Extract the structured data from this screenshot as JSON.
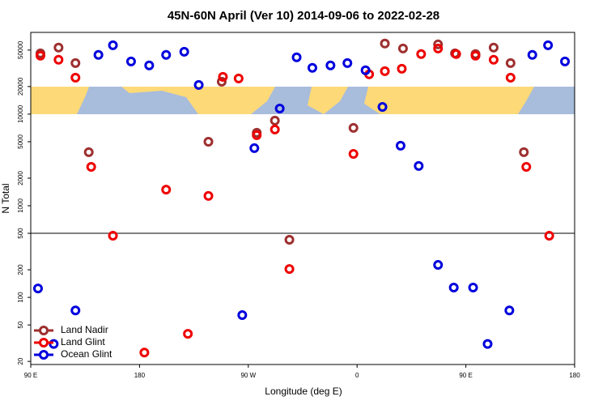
{
  "chart_data": {
    "type": "scatter",
    "title": "45N-60N April (Ver 10)   2014-09-06 to 2022-02-28",
    "x_label": "Longitude (deg E)",
    "y_label": "N Total",
    "log_y": true,
    "xlim": [
      90,
      540
    ],
    "xticks": [
      {
        "value": 90,
        "label": "90 E"
      },
      180,
      {
        "value": 270,
        "label": "90 W"
      },
      {
        "value": 360,
        "label": "0"
      },
      {
        "value": 450,
        "label": "90 E"
      },
      {
        "value": 540,
        "label": "180"
      }
    ],
    "ylim": [
      18.5,
      78000
    ],
    "yticks": [
      20,
      50,
      100,
      200,
      500,
      1000,
      2000,
      5000,
      10000,
      20000,
      50000
    ],
    "reference_line": 500,
    "legend": "lower left",
    "series": [
      {
        "name": "Land Nadir",
        "color": "#9e2f2f",
        "x": [
          98,
          113,
          127,
          138,
          237,
          248,
          277,
          292,
          304,
          357,
          383,
          398,
          427,
          441,
          458,
          473,
          487,
          498
        ],
        "values": [
          46100,
          53200,
          36100,
          3840,
          5000,
          22600,
          6260,
          8500,
          425,
          7080,
          58900,
          52100,
          57700,
          46100,
          45200,
          53200,
          36100,
          3840
        ]
      },
      {
        "name": "Land Glint",
        "color": "#ee0000",
        "x": [
          98,
          113,
          127,
          140,
          158,
          202,
          237,
          220,
          184,
          249,
          262,
          277,
          292,
          304,
          357,
          370,
          383,
          397,
          413,
          427,
          442,
          458,
          473,
          487,
          500,
          519
        ],
        "values": [
          43400,
          39200,
          25000,
          2660,
          471,
          1500,
          1280,
          40,
          25,
          25500,
          24500,
          5890,
          6790,
          204,
          3680,
          27200,
          29400,
          31300,
          45200,
          52100,
          45200,
          43400,
          39200,
          25000,
          2660,
          471
        ]
      },
      {
        "name": "Ocean Glint",
        "color": "#0000dd",
        "x": [
          96,
          109,
          127,
          146,
          158,
          173,
          188,
          202,
          217,
          229,
          265,
          275,
          296,
          310,
          323,
          338,
          352,
          367,
          381,
          396,
          411,
          427,
          440,
          456,
          468,
          486,
          505,
          518,
          532
        ],
        "values": [
          125,
          31,
          72,
          44300,
          56500,
          37600,
          34000,
          44300,
          48000,
          20800,
          64,
          4250,
          11500,
          41700,
          32000,
          34000,
          36100,
          30100,
          12000,
          4520,
          2720,
          226,
          128,
          128,
          31,
          72,
          44300,
          56500,
          37600
        ]
      }
    ]
  }
}
